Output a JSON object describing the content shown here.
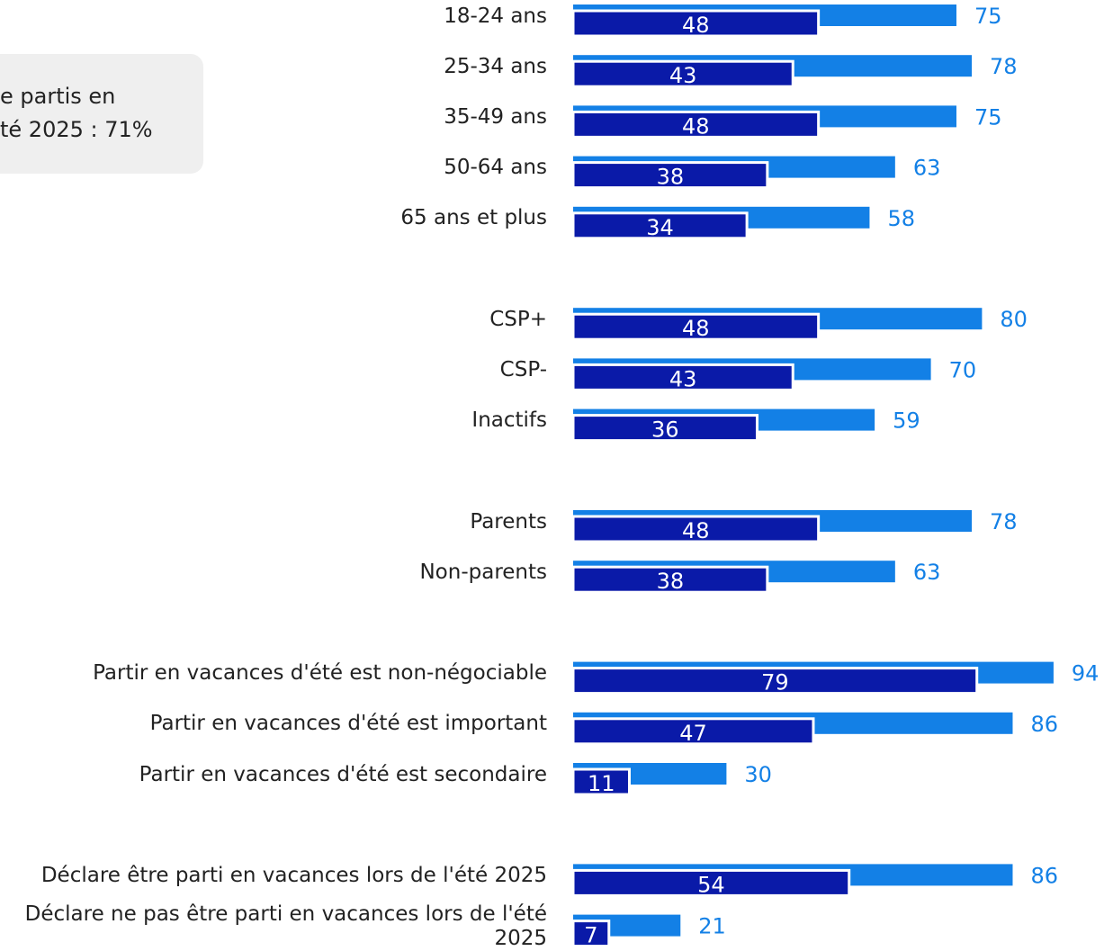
{
  "chart_data": {
    "type": "bar",
    "orientation": "horizontal",
    "annotation": [
      "e partis en",
      "té 2025 : 71%"
    ],
    "categories": [
      "18-24 ans",
      "25-34 ans",
      "35-49 ans",
      "50-64 ans",
      "65 ans et plus",
      null,
      "CSP+",
      "CSP-",
      "Inactifs",
      null,
      "Parents",
      "Non-parents",
      null,
      "Partir en vacances d'été est non-négociable",
      "Partir en vacances d'été est important",
      "Partir en vacances d'été est secondaire",
      null,
      "Déclare être parti en vacances lors de l'été 2025",
      "Déclare ne pas être parti en vacances lors de l'été 2025"
    ],
    "xlim": [
      0,
      100
    ],
    "series": [
      {
        "color": "#1380e6",
        "values": [
          75,
          78,
          75,
          63,
          58,
          null,
          80,
          70,
          59,
          null,
          78,
          63,
          null,
          94,
          86,
          30,
          null,
          86,
          21
        ]
      },
      {
        "color": "#0a1aa8",
        "values": [
          48,
          43,
          48,
          38,
          34,
          null,
          48,
          43,
          36,
          null,
          48,
          38,
          null,
          79,
          47,
          11,
          null,
          54,
          7
        ]
      }
    ]
  }
}
